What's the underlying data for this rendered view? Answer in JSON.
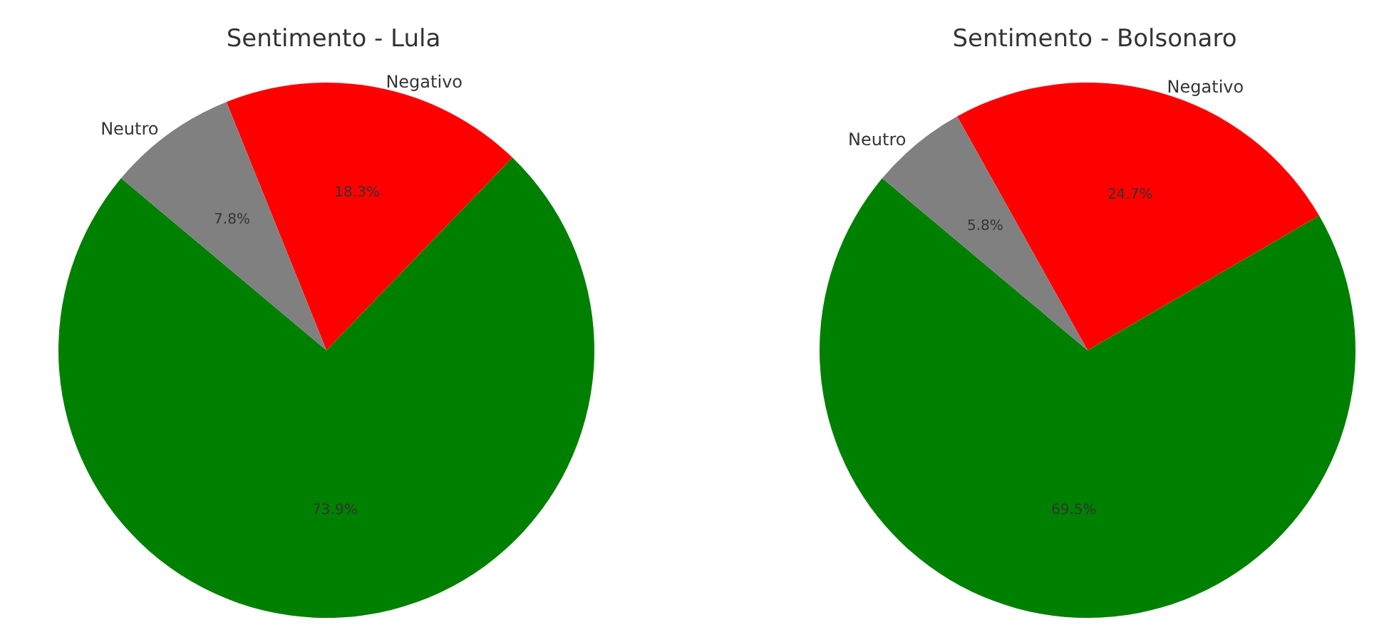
{
  "chart_data": [
    {
      "type": "pie",
      "title": "Sentimento - Lula",
      "categories": [
        null,
        "Negativo",
        "Neutro"
      ],
      "values": [
        73.9,
        18.3,
        7.8
      ],
      "colors": [
        "#008000",
        "#ff0000",
        "#808080"
      ],
      "value_labels": [
        "73.9%",
        "18.3%",
        "7.8%"
      ]
    },
    {
      "type": "pie",
      "title": "Sentimento - Bolsonaro",
      "categories": [
        null,
        "Negativo",
        "Neutro"
      ],
      "values": [
        69.5,
        24.7,
        5.8
      ],
      "colors": [
        "#008000",
        "#ff0000",
        "#808080"
      ],
      "value_labels": [
        "69.5%",
        "24.7%",
        "5.8%"
      ]
    }
  ]
}
